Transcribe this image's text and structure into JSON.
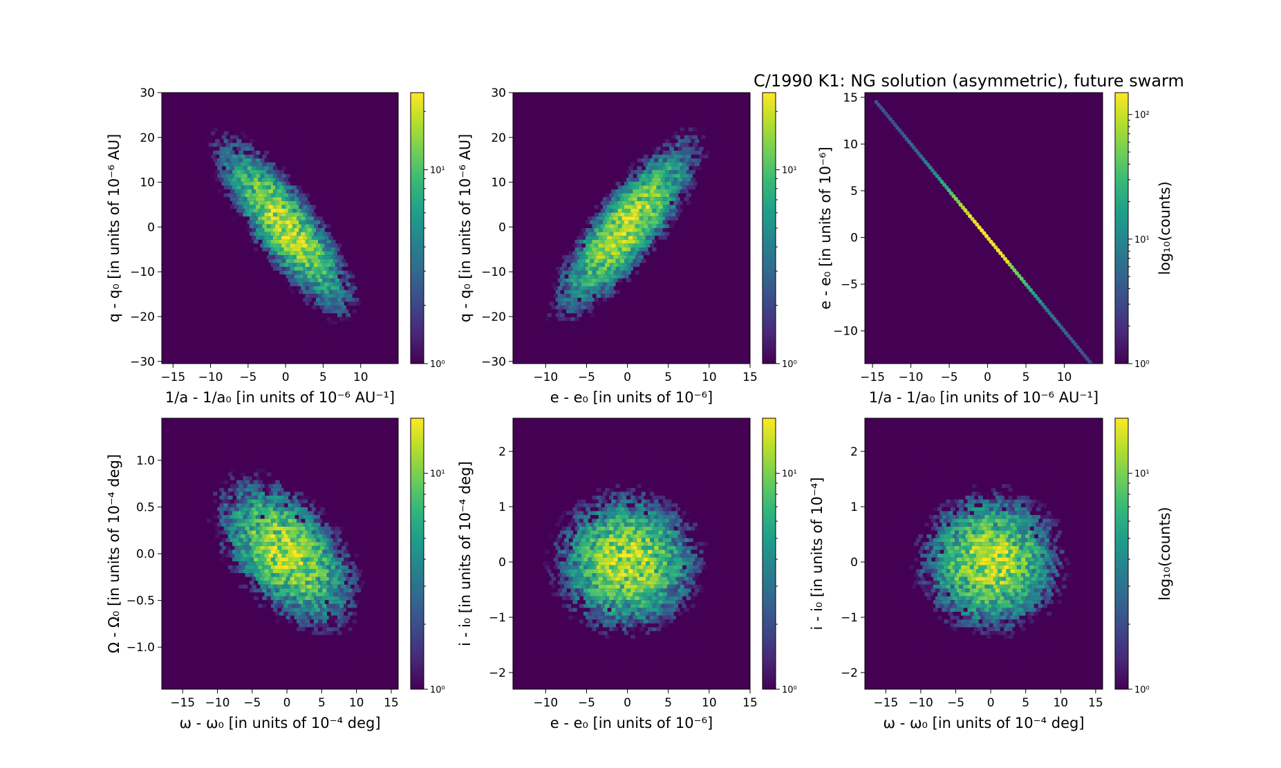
{
  "figure": {
    "title": "C/1990 K1:  NG solution (asymmetric), future swarm"
  },
  "colormap": {
    "name": "viridis",
    "stops": [
      "#440154",
      "#482878",
      "#3e4989",
      "#31688e",
      "#26828e",
      "#1f9e89",
      "#35b779",
      "#6ece58",
      "#b5de2b",
      "#fde725"
    ],
    "background": "#440154"
  },
  "chart_data": [
    {
      "type": "heatmap",
      "plot_kind": "hexbin",
      "xlabel": "1/a - 1/a₀ [in units of 10⁻⁶ AU⁻¹]",
      "ylabel": "q - q₀ [in units of 10⁻⁶ AU]",
      "xlim": [
        -16.5,
        15
      ],
      "ylim": [
        -30.5,
        30
      ],
      "xticks": [
        -15,
        -10,
        -5,
        0,
        5,
        10
      ],
      "xtick_labels": [
        "−15",
        "−10",
        "−5",
        "0",
        "5",
        "10"
      ],
      "yticks": [
        -30,
        -20,
        -10,
        0,
        10,
        20,
        30
      ],
      "ytick_labels": [
        "−30",
        "−20",
        "−10",
        "0",
        "10",
        "20",
        "30"
      ],
      "distribution": {
        "sx": 4.2,
        "sy": 9,
        "rho": -0.82
      },
      "colorbar": {
        "scale": "log",
        "min": 1,
        "max": 25,
        "ticks": [
          1,
          10
        ],
        "tick_labels": [
          "10⁰",
          "10¹"
        ],
        "label": ""
      }
    },
    {
      "type": "heatmap",
      "plot_kind": "hexbin",
      "xlabel": "e - e₀ [in units of 10⁻⁶]",
      "ylabel": "q - q₀ [in units of 10⁻⁶ AU]",
      "xlim": [
        -14,
        15
      ],
      "ylim": [
        -30.5,
        30
      ],
      "xticks": [
        -10,
        -5,
        0,
        5,
        10,
        15
      ],
      "xtick_labels": [
        "−10",
        "−5",
        "0",
        "5",
        "10",
        "15"
      ],
      "yticks": [
        -30,
        -20,
        -10,
        0,
        10,
        20,
        30
      ],
      "ytick_labels": [
        "−30",
        "−20",
        "−10",
        "0",
        "10",
        "20",
        "30"
      ],
      "distribution": {
        "sx": 4,
        "sy": 9,
        "rho": 0.82
      },
      "colorbar": {
        "scale": "log",
        "min": 1,
        "max": 25,
        "ticks": [
          1,
          10
        ],
        "tick_labels": [
          "10⁰",
          "10¹"
        ],
        "label": ""
      }
    },
    {
      "type": "heatmap",
      "plot_kind": "hexbin",
      "xlabel": "1/a - 1/a₀ [in units of 10⁻⁶ AU⁻¹]",
      "ylabel": "e - e₀ [in units of 10⁻⁶]",
      "xlim": [
        -16,
        15
      ],
      "ylim": [
        -13.5,
        15.5
      ],
      "xticks": [
        -15,
        -10,
        -5,
        0,
        5,
        10
      ],
      "xtick_labels": [
        "−15",
        "−10",
        "−5",
        "0",
        "5",
        "10"
      ],
      "yticks": [
        -10,
        -5,
        0,
        5,
        10,
        15
      ],
      "ytick_labels": [
        "−10",
        "−5",
        "0",
        "5",
        "10",
        "15"
      ],
      "distribution": {
        "line": true,
        "slope": -1,
        "from": -14.5,
        "to": 14.5,
        "sx": 4.5
      },
      "colorbar": {
        "scale": "log",
        "min": 1,
        "max": 150,
        "ticks": [
          1,
          10,
          100
        ],
        "tick_labels": [
          "10⁰",
          "10¹",
          "10²"
        ],
        "label": "log₁₀(counts)"
      }
    },
    {
      "type": "heatmap",
      "plot_kind": "hexbin",
      "xlabel": "ω - ω₀ [in units of 10⁻⁴ deg]",
      "ylabel": "Ω - Ω₀ [in units of 10⁻⁴ deg]",
      "xlim": [
        -18,
        16
      ],
      "ylim": [
        -1.45,
        1.45
      ],
      "xticks": [
        -15,
        -10,
        -5,
        0,
        5,
        10,
        15
      ],
      "xtick_labels": [
        "−15",
        "−10",
        "−5",
        "0",
        "5",
        "10",
        "15"
      ],
      "yticks": [
        -1,
        -0.5,
        0,
        0.5,
        1
      ],
      "ytick_labels": [
        "−1.0",
        "−0.5",
        "0.0",
        "0.5",
        "1.0"
      ],
      "distribution": {
        "sx": 4.8,
        "sy": 0.38,
        "rho": -0.5
      },
      "colorbar": {
        "scale": "log",
        "min": 1,
        "max": 18,
        "ticks": [
          1,
          10
        ],
        "tick_labels": [
          "10⁰",
          "10¹"
        ],
        "label": ""
      }
    },
    {
      "type": "heatmap",
      "plot_kind": "hexbin",
      "xlabel": "e - e₀ [in units of 10⁻⁶]",
      "ylabel": "i - i₀ [in units of 10⁻⁴ deg]",
      "xlim": [
        -14,
        15
      ],
      "ylim": [
        -2.3,
        2.6
      ],
      "xticks": [
        -10,
        -5,
        0,
        5,
        10,
        15
      ],
      "xtick_labels": [
        "−10",
        "−5",
        "0",
        "5",
        "10",
        "15"
      ],
      "yticks": [
        -2,
        -1,
        0,
        1,
        2
      ],
      "ytick_labels": [
        "−2",
        "−1",
        "0",
        "1",
        "2"
      ],
      "distribution": {
        "sx": 4.2,
        "sy": 0.6,
        "rho": 0
      },
      "colorbar": {
        "scale": "log",
        "min": 1,
        "max": 18,
        "ticks": [
          1,
          10
        ],
        "tick_labels": [
          "10⁰",
          "10¹"
        ],
        "label": ""
      }
    },
    {
      "type": "heatmap",
      "plot_kind": "hexbin",
      "xlabel": "ω - ω₀ [in units of 10⁻⁴ deg]",
      "ylabel": "i - i₀ [in units of 10⁻⁴]",
      "xlim": [
        -18,
        16
      ],
      "ylim": [
        -2.3,
        2.6
      ],
      "xticks": [
        -15,
        -10,
        -5,
        0,
        5,
        10,
        15
      ],
      "xtick_labels": [
        "−15",
        "−10",
        "−5",
        "0",
        "5",
        "10",
        "15"
      ],
      "yticks": [
        -2,
        -1,
        0,
        1,
        2
      ],
      "ytick_labels": [
        "−2",
        "−1",
        "0",
        "1",
        "2"
      ],
      "distribution": {
        "sx": 4.8,
        "sy": 0.6,
        "rho": 0
      },
      "colorbar": {
        "scale": "log",
        "min": 1,
        "max": 18,
        "ticks": [
          1,
          10
        ],
        "tick_labels": [
          "10⁰",
          "10¹"
        ],
        "label": "log₁₀(counts)"
      }
    }
  ]
}
